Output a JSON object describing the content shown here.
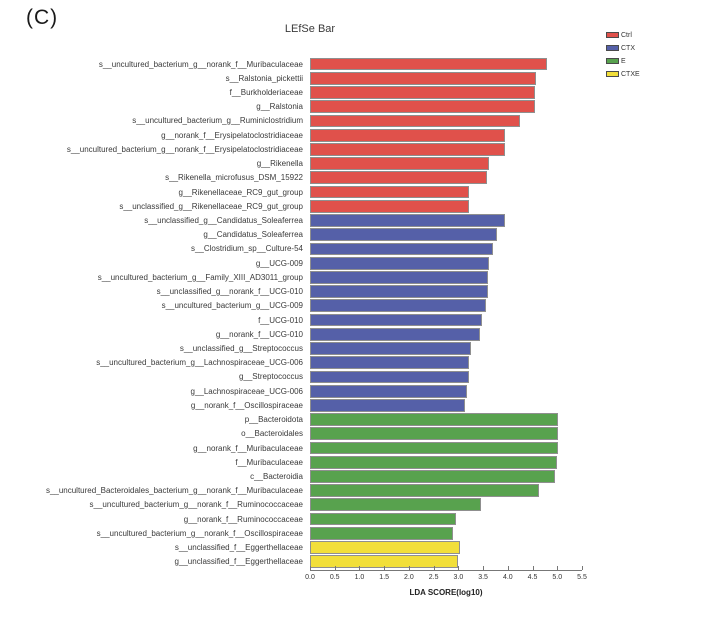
{
  "panel_label": "(C)",
  "chart_data": {
    "type": "bar",
    "orientation": "horizontal",
    "title": "LEfSe Bar",
    "xlabel": "LDA SCORE(log10)",
    "xlim": [
      0,
      5.5
    ],
    "x_ticks": [
      "0.0",
      "0.5",
      "1.0",
      "1.5",
      "2.0",
      "2.5",
      "3.0",
      "3.5",
      "4.0",
      "4.5",
      "5.0",
      "5.5"
    ],
    "grid": false,
    "legend_position": "top-right",
    "legend": [
      {
        "name": "Ctrl",
        "color": "#e0514b"
      },
      {
        "name": "CTX",
        "color": "#5560a8"
      },
      {
        "name": "E",
        "color": "#58a24e"
      },
      {
        "name": "CTXE",
        "color": "#f2df3a"
      }
    ],
    "bars": [
      {
        "label": "s__uncultured_bacterium_g__norank_f__Muribaculaceae",
        "group": "Ctrl",
        "value": 4.79
      },
      {
        "label": "s__Ralstonia_pickettii",
        "group": "Ctrl",
        "value": 4.57
      },
      {
        "label": "f__Burkholderiaceae",
        "group": "Ctrl",
        "value": 4.55
      },
      {
        "label": "g__Ralstonia",
        "group": "Ctrl",
        "value": 4.55
      },
      {
        "label": "s__uncultured_bacterium_g__Ruminiclostridium",
        "group": "Ctrl",
        "value": 4.25
      },
      {
        "label": "g__norank_f__Erysipelatoclostridiaceae",
        "group": "Ctrl",
        "value": 3.94
      },
      {
        "label": "s__uncultured_bacterium_g__norank_f__Erysipelatoclostridiaceae",
        "group": "Ctrl",
        "value": 3.94
      },
      {
        "label": "g__Rikenella",
        "group": "Ctrl",
        "value": 3.62
      },
      {
        "label": "s__Rikenella_microfusus_DSM_15922",
        "group": "Ctrl",
        "value": 3.58
      },
      {
        "label": "g__Rikenellaceae_RC9_gut_group",
        "group": "Ctrl",
        "value": 3.22
      },
      {
        "label": "s__unclassified_g__Rikenellaceae_RC9_gut_group",
        "group": "Ctrl",
        "value": 3.22
      },
      {
        "label": "s__unclassified_g__Candidatus_Soleaferrea",
        "group": "CTX",
        "value": 3.94
      },
      {
        "label": "g__Candidatus_Soleaferrea",
        "group": "CTX",
        "value": 3.78
      },
      {
        "label": "s__Clostridium_sp__Culture-54",
        "group": "CTX",
        "value": 3.7
      },
      {
        "label": "g__UCG-009",
        "group": "CTX",
        "value": 3.62
      },
      {
        "label": "s__uncultured_bacterium_g__Family_XIII_AD3011_group",
        "group": "CTX",
        "value": 3.6
      },
      {
        "label": "s__unclassified_g__norank_f__UCG-010",
        "group": "CTX",
        "value": 3.6
      },
      {
        "label": "s__uncultured_bacterium_g__UCG-009",
        "group": "CTX",
        "value": 3.56
      },
      {
        "label": "f__UCG-010",
        "group": "CTX",
        "value": 3.48
      },
      {
        "label": "g__norank_f__UCG-010",
        "group": "CTX",
        "value": 3.44
      },
      {
        "label": "s__unclassified_g__Streptococcus",
        "group": "CTX",
        "value": 3.26
      },
      {
        "label": "s__uncultured_bacterium_g__Lachnospiraceae_UCG-006",
        "group": "CTX",
        "value": 3.22
      },
      {
        "label": "g__Streptococcus",
        "group": "CTX",
        "value": 3.22
      },
      {
        "label": "g__Lachnospiraceae_UCG-006",
        "group": "CTX",
        "value": 3.18
      },
      {
        "label": "g__norank_f__Oscillospiraceae",
        "group": "CTX",
        "value": 3.13
      },
      {
        "label": "p__Bacteroidota",
        "group": "E",
        "value": 5.01
      },
      {
        "label": "o__Bacteroidales",
        "group": "E",
        "value": 5.01
      },
      {
        "label": "g__norank_f__Muribaculaceae",
        "group": "E",
        "value": 5.01
      },
      {
        "label": "f__Muribaculaceae",
        "group": "E",
        "value": 4.99
      },
      {
        "label": "c__Bacteroidia",
        "group": "E",
        "value": 4.95
      },
      {
        "label": "s__uncultured_Bacteroidales_bacterium_g__norank_f__Muribaculaceae",
        "group": "E",
        "value": 4.63
      },
      {
        "label": "s__uncultured_bacterium_g__norank_f__Ruminococcaceae",
        "group": "E",
        "value": 3.46
      },
      {
        "label": "g__norank_f__Ruminococcaceae",
        "group": "E",
        "value": 2.95
      },
      {
        "label": "s__uncultured_bacterium_g__norank_f__Oscillospiraceae",
        "group": "E",
        "value": 2.89
      },
      {
        "label": "s__unclassified_f__Eggerthellaceae",
        "group": "CTXE",
        "value": 3.03
      },
      {
        "label": "g__unclassified_f__Eggerthellaceae",
        "group": "CTXE",
        "value": 2.99
      }
    ]
  }
}
